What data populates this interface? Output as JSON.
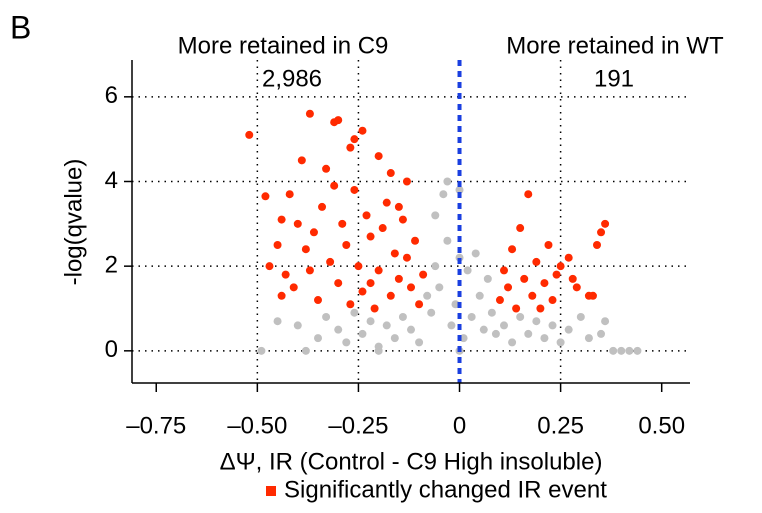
{
  "chart_data": {
    "type": "scatter",
    "panel_label": "B",
    "headers": [
      "More retained in C9",
      "More retained in WT"
    ],
    "annotations": [
      "2,986",
      "191"
    ],
    "x_label": "ΔΨ, IR (Control - C9 High insoluble)",
    "y_label": "-log(qvalue)",
    "xlim": [
      -0.81,
      0.57
    ],
    "ylim": [
      -0.76,
      6.87
    ],
    "xticks": [
      {
        "value": -0.75,
        "label": "–0.75"
      },
      {
        "value": -0.5,
        "label": "–0.50"
      },
      {
        "value": -0.25,
        "label": "–0.25"
      },
      0,
      0.25,
      {
        "value": 0.5,
        "label": "0.50"
      }
    ],
    "yticks": [
      0,
      2,
      4,
      6
    ],
    "x_grid_lines": [
      -0.5,
      -0.25,
      0.25
    ],
    "grid": true,
    "reference_line": {
      "x": 0,
      "color": "#1a3fe0"
    },
    "legend": "bottom",
    "series": [
      {
        "color": "#c0c0c0",
        "x": [
          -0.4,
          -0.45,
          -0.35,
          -0.33,
          -0.3,
          -0.28,
          -0.26,
          -0.24,
          -0.22,
          -0.2,
          -0.18,
          -0.16,
          -0.14,
          -0.12,
          -0.1,
          -0.08,
          -0.07,
          -0.06,
          -0.05,
          -0.04,
          -0.03,
          -0.02,
          -0.01,
          0.01,
          0.02,
          0.03,
          0.04,
          0.05,
          0.06,
          0.07,
          0.08,
          0.09,
          0.11,
          0.13,
          0.15,
          0.17,
          0.19,
          0.21,
          0.23,
          0.25,
          0.27,
          0.3,
          0.32,
          0.35,
          0.36,
          0.38,
          0.4,
          0.42,
          0.44,
          -0.49,
          -0.38,
          -0.2,
          0.0,
          -0.03,
          0.0,
          -0.06,
          0.0
        ],
        "values": [
          0.6,
          0.7,
          0.3,
          0.8,
          0.5,
          0.2,
          0.9,
          0.4,
          0.7,
          0.1,
          0.6,
          0.3,
          0.8,
          0.5,
          0.2,
          1.3,
          0.9,
          2.0,
          1.5,
          3.7,
          2.6,
          0.6,
          1.1,
          0.3,
          1.9,
          0.8,
          2.3,
          1.3,
          0.5,
          1.7,
          0.9,
          0.4,
          0.6,
          0.2,
          0.8,
          0.4,
          0.7,
          0.3,
          0.6,
          0.2,
          0.5,
          0.8,
          0.3,
          0.4,
          0.7,
          0.0,
          0.0,
          0.0,
          0.0,
          0.0,
          0.0,
          0.0,
          0.0,
          4.0,
          3.8,
          3.2,
          2.2
        ]
      },
      {
        "name": "Significantly changed IR event",
        "color": "#ff2a00",
        "x": [
          -0.52,
          -0.37,
          -0.31,
          -0.3,
          -0.26,
          -0.24,
          -0.2,
          -0.33,
          -0.39,
          -0.48,
          -0.42,
          -0.44,
          -0.4,
          -0.45,
          -0.47,
          -0.43,
          -0.41,
          -0.38,
          -0.36,
          -0.35,
          -0.34,
          -0.32,
          -0.3,
          -0.29,
          -0.28,
          -0.27,
          -0.26,
          -0.25,
          -0.24,
          -0.23,
          -0.22,
          -0.21,
          -0.2,
          -0.19,
          -0.18,
          -0.17,
          -0.16,
          -0.15,
          -0.14,
          -0.13,
          -0.12,
          -0.11,
          -0.1,
          -0.09,
          -0.13,
          -0.17,
          -0.27,
          -0.31,
          -0.37,
          -0.44,
          -0.22,
          -0.15,
          0.1,
          0.11,
          0.12,
          0.13,
          0.14,
          0.15,
          0.16,
          0.17,
          0.18,
          0.19,
          0.2,
          0.21,
          0.22,
          0.23,
          0.24,
          0.25,
          0.27,
          0.28,
          0.29,
          0.32,
          0.34,
          0.35,
          0.36,
          0.33
        ],
        "values": [
          5.1,
          5.6,
          5.4,
          5.45,
          5.0,
          5.2,
          4.6,
          4.3,
          4.5,
          3.65,
          3.7,
          3.1,
          3.0,
          2.5,
          2.0,
          1.8,
          1.5,
          2.4,
          2.8,
          1.2,
          3.4,
          2.1,
          1.6,
          3.0,
          2.5,
          1.1,
          3.8,
          2.0,
          1.4,
          3.2,
          2.7,
          1.0,
          1.9,
          2.9,
          3.5,
          1.3,
          2.3,
          1.7,
          3.1,
          2.2,
          1.5,
          2.6,
          1.1,
          1.8,
          4.0,
          4.2,
          4.8,
          3.9,
          1.9,
          1.3,
          1.6,
          3.4,
          1.2,
          1.9,
          1.5,
          2.4,
          1.0,
          2.9,
          1.7,
          3.7,
          1.3,
          2.1,
          1.0,
          1.6,
          2.5,
          1.2,
          1.8,
          2.0,
          2.2,
          1.7,
          1.5,
          1.3,
          2.5,
          2.8,
          3.0,
          1.3
        ]
      }
    ]
  }
}
